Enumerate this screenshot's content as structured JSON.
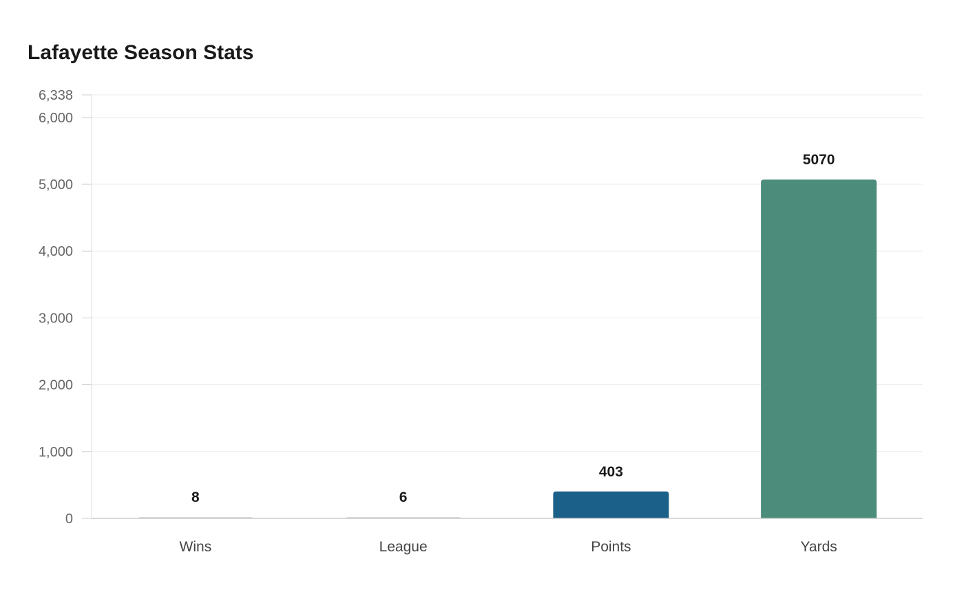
{
  "chart_data": {
    "type": "bar",
    "title": "Lafayette Season Stats",
    "categories": [
      "Wins",
      "League",
      "Points",
      "Yards"
    ],
    "values": [
      8,
      6,
      403,
      5070
    ],
    "data_labels": [
      "8",
      "6",
      "403",
      "5070"
    ],
    "colors": [
      "#d9d9d9",
      "#d9d9d9",
      "#1a6089",
      "#4c8c7a"
    ],
    "ylim": [
      0,
      6338
    ],
    "yticks": [
      0,
      1000,
      2000,
      3000,
      4000,
      5000,
      6000,
      6338
    ],
    "ytick_labels": [
      "0",
      "1,000",
      "2,000",
      "3,000",
      "4,000",
      "5,000",
      "6,000",
      "6,338"
    ],
    "grid": true,
    "xlabel": "",
    "ylabel": ""
  }
}
